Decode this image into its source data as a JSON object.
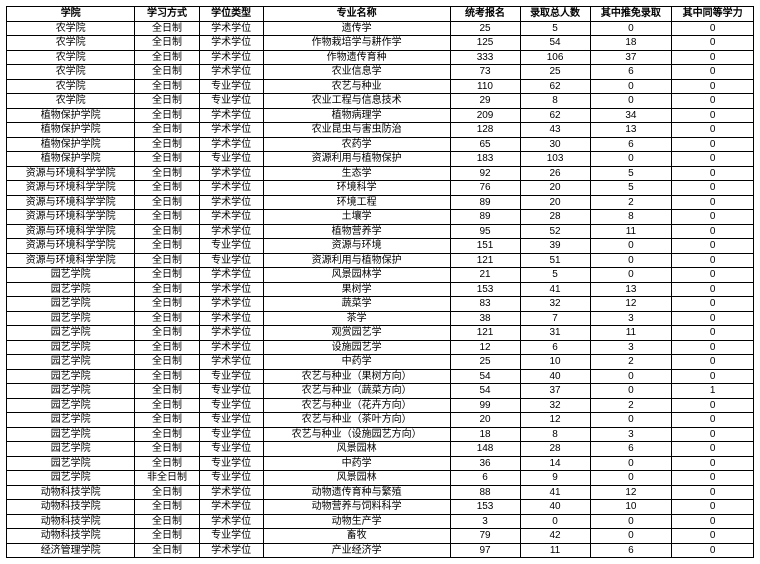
{
  "table": {
    "columns": [
      "学院",
      "学习方式",
      "学位类型",
      "专业名称",
      "统考报名",
      "录取总人数",
      "其中推免录取",
      "其中同等学力"
    ],
    "col_align": [
      "center",
      "center",
      "center",
      "center",
      "center",
      "center",
      "center",
      "center"
    ],
    "header_fontsize": 10,
    "cell_fontsize": 10,
    "border_color": "#000000",
    "background_color": "#ffffff",
    "rows": [
      [
        "农学院",
        "全日制",
        "学术学位",
        "遗传学",
        "25",
        "5",
        "0",
        "0"
      ],
      [
        "农学院",
        "全日制",
        "学术学位",
        "作物栽培学与耕作学",
        "125",
        "54",
        "18",
        "0"
      ],
      [
        "农学院",
        "全日制",
        "学术学位",
        "作物遗传育种",
        "333",
        "106",
        "37",
        "0"
      ],
      [
        "农学院",
        "全日制",
        "学术学位",
        "农业信息学",
        "73",
        "25",
        "6",
        "0"
      ],
      [
        "农学院",
        "全日制",
        "专业学位",
        "农艺与种业",
        "110",
        "62",
        "0",
        "0"
      ],
      [
        "农学院",
        "全日制",
        "专业学位",
        "农业工程与信息技术",
        "29",
        "8",
        "0",
        "0"
      ],
      [
        "植物保护学院",
        "全日制",
        "学术学位",
        "植物病理学",
        "209",
        "62",
        "34",
        "0"
      ],
      [
        "植物保护学院",
        "全日制",
        "学术学位",
        "农业昆虫与害虫防治",
        "128",
        "43",
        "13",
        "0"
      ],
      [
        "植物保护学院",
        "全日制",
        "学术学位",
        "农药学",
        "65",
        "30",
        "6",
        "0"
      ],
      [
        "植物保护学院",
        "全日制",
        "专业学位",
        "资源利用与植物保护",
        "183",
        "103",
        "0",
        "0"
      ],
      [
        "资源与环境科学学院",
        "全日制",
        "学术学位",
        "生态学",
        "92",
        "26",
        "5",
        "0"
      ],
      [
        "资源与环境科学学院",
        "全日制",
        "学术学位",
        "环境科学",
        "76",
        "20",
        "5",
        "0"
      ],
      [
        "资源与环境科学学院",
        "全日制",
        "学术学位",
        "环境工程",
        "89",
        "20",
        "2",
        "0"
      ],
      [
        "资源与环境科学学院",
        "全日制",
        "学术学位",
        "土壤学",
        "89",
        "28",
        "8",
        "0"
      ],
      [
        "资源与环境科学学院",
        "全日制",
        "学术学位",
        "植物营养学",
        "95",
        "52",
        "11",
        "0"
      ],
      [
        "资源与环境科学学院",
        "全日制",
        "专业学位",
        "资源与环境",
        "151",
        "39",
        "0",
        "0"
      ],
      [
        "资源与环境科学学院",
        "全日制",
        "专业学位",
        "资源利用与植物保护",
        "121",
        "51",
        "0",
        "0"
      ],
      [
        "园艺学院",
        "全日制",
        "学术学位",
        "风景园林学",
        "21",
        "5",
        "0",
        "0"
      ],
      [
        "园艺学院",
        "全日制",
        "学术学位",
        "果树学",
        "153",
        "41",
        "13",
        "0"
      ],
      [
        "园艺学院",
        "全日制",
        "学术学位",
        "蔬菜学",
        "83",
        "32",
        "12",
        "0"
      ],
      [
        "园艺学院",
        "全日制",
        "学术学位",
        "茶学",
        "38",
        "7",
        "3",
        "0"
      ],
      [
        "园艺学院",
        "全日制",
        "学术学位",
        "观赏园艺学",
        "121",
        "31",
        "11",
        "0"
      ],
      [
        "园艺学院",
        "全日制",
        "学术学位",
        "设施园艺学",
        "12",
        "6",
        "3",
        "0"
      ],
      [
        "园艺学院",
        "全日制",
        "学术学位",
        "中药学",
        "25",
        "10",
        "2",
        "0"
      ],
      [
        "园艺学院",
        "全日制",
        "专业学位",
        "农艺与种业（果树方向）",
        "54",
        "40",
        "0",
        "0"
      ],
      [
        "园艺学院",
        "全日制",
        "专业学位",
        "农艺与种业（蔬菜方向）",
        "54",
        "37",
        "0",
        "1"
      ],
      [
        "园艺学院",
        "全日制",
        "专业学位",
        "农艺与种业（花卉方向）",
        "99",
        "32",
        "2",
        "0"
      ],
      [
        "园艺学院",
        "全日制",
        "专业学位",
        "农艺与种业（茶叶方向）",
        "20",
        "12",
        "0",
        "0"
      ],
      [
        "园艺学院",
        "全日制",
        "专业学位",
        "农艺与种业（设施园艺方向）",
        "18",
        "8",
        "3",
        "0"
      ],
      [
        "园艺学院",
        "全日制",
        "专业学位",
        "风景园林",
        "148",
        "28",
        "6",
        "0"
      ],
      [
        "园艺学院",
        "全日制",
        "专业学位",
        "中药学",
        "36",
        "14",
        "0",
        "0"
      ],
      [
        "园艺学院",
        "非全日制",
        "专业学位",
        "风景园林",
        "6",
        "9",
        "0",
        "0"
      ],
      [
        "动物科技学院",
        "全日制",
        "学术学位",
        "动物遗传育种与繁殖",
        "88",
        "41",
        "12",
        "0"
      ],
      [
        "动物科技学院",
        "全日制",
        "学术学位",
        "动物营养与饲料科学",
        "153",
        "40",
        "10",
        "0"
      ],
      [
        "动物科技学院",
        "全日制",
        "学术学位",
        "动物生产学",
        "3",
        "0",
        "0",
        "0"
      ],
      [
        "动物科技学院",
        "全日制",
        "专业学位",
        "畜牧",
        "79",
        "42",
        "0",
        "0"
      ],
      [
        "经济管理学院",
        "全日制",
        "学术学位",
        "产业经济学",
        "97",
        "11",
        "6",
        "0"
      ]
    ]
  }
}
